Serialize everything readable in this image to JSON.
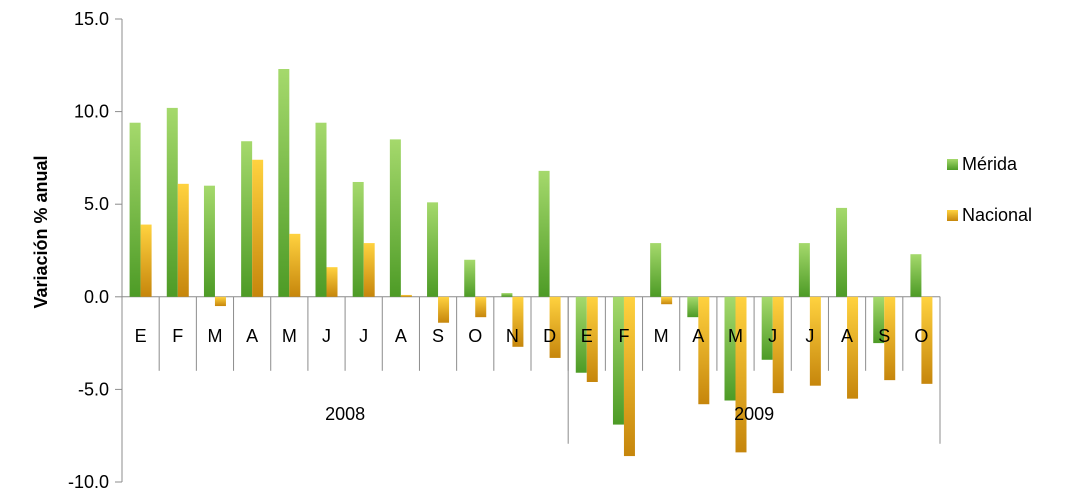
{
  "colors": {
    "merida_top": "#a5d96c",
    "merida_bottom": "#4d9b26",
    "nacional_top": "#ffd23f",
    "nacional_bottom": "#c6860c",
    "axis": "#8c8c8c",
    "text": "#000000"
  },
  "chart_data": {
    "type": "bar",
    "title": "",
    "xlabel": "",
    "ylabel": "Variación % anual",
    "ylim": [
      -10,
      15
    ],
    "y_ticks": [
      15.0,
      10.0,
      5.0,
      0.0,
      -5.0,
      -10.0
    ],
    "y_tick_labels": [
      "15.0",
      "10.0",
      "5.0",
      "0.0",
      "-5.0",
      "-10.0"
    ],
    "categories": [
      "E",
      "F",
      "M",
      "A",
      "M",
      "J",
      "J",
      "A",
      "S",
      "O",
      "N",
      "D",
      "E",
      "F",
      "M",
      "A",
      "M",
      "J",
      "J",
      "A",
      "S",
      "O"
    ],
    "groups": [
      {
        "label": "2008",
        "count": 12
      },
      {
        "label": "2009",
        "count": 10
      }
    ],
    "series": [
      {
        "name": "Mérida",
        "values": [
          9.4,
          10.2,
          6.0,
          8.4,
          12.3,
          9.4,
          6.2,
          8.5,
          5.1,
          2.0,
          0.2,
          6.8,
          -4.1,
          -6.9,
          2.9,
          -1.1,
          -5.6,
          -3.4,
          2.9,
          4.8,
          -2.5,
          2.3
        ]
      },
      {
        "name": "Nacional",
        "values": [
          3.9,
          6.1,
          -0.5,
          7.4,
          3.4,
          1.6,
          2.9,
          0.1,
          -1.4,
          -1.1,
          -2.7,
          -3.3,
          -4.6,
          -8.6,
          -0.4,
          -5.8,
          -8.4,
          -5.2,
          -4.8,
          -5.5,
          -4.5,
          -4.7
        ]
      }
    ],
    "legend_position": "right",
    "grid": false
  }
}
